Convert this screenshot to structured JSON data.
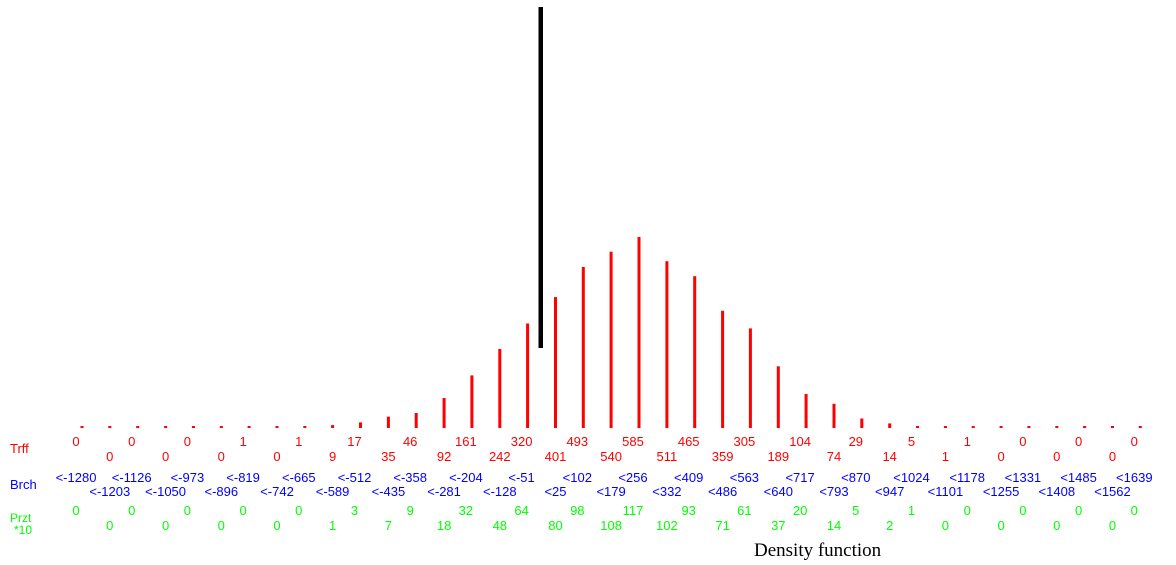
{
  "chart_data": {
    "type": "bar",
    "title": "Density function",
    "row_labels": {
      "traffic": "Trff",
      "bracket": "Brch",
      "percent_top": "Przt",
      "percent_bottom": "*10"
    },
    "colors": {
      "bars": "#ff0000",
      "traffic": "#ff0000",
      "bracket": "#0000ff",
      "percent": "#00ff00",
      "marker": "#000000"
    },
    "categories": [
      "<-1280",
      "<-1203",
      "<-1126",
      "<-1050",
      "<-973",
      "<-896",
      "<-819",
      "<-742",
      "<-665",
      "<-589",
      "<-512",
      "<-435",
      "<-358",
      "<-281",
      "<-204",
      "<-128",
      "<-51",
      "<25",
      "<102",
      "<179",
      "<256",
      "<332",
      "<409",
      "<486",
      "<563",
      "<640",
      "<717",
      "<793",
      "<870",
      "<947",
      "<1024",
      "<1101",
      "<1178",
      "<1255",
      "<1331",
      "<1408",
      "<1485",
      "<1562",
      "<1639"
    ],
    "values": [
      0,
      0,
      0,
      0,
      0,
      0,
      1,
      0,
      1,
      9,
      17,
      35,
      46,
      92,
      161,
      242,
      320,
      401,
      493,
      540,
      585,
      511,
      465,
      359,
      305,
      189,
      104,
      74,
      29,
      14,
      5,
      1,
      1,
      0,
      0,
      0,
      0,
      0,
      0
    ],
    "percent_x10": [
      0,
      0,
      0,
      0,
      0,
      0,
      0,
      0,
      0,
      1,
      3,
      7,
      9,
      18,
      32,
      48,
      64,
      80,
      98,
      108,
      117,
      102,
      93,
      71,
      61,
      37,
      20,
      14,
      5,
      2,
      1,
      0,
      0,
      0,
      0,
      0,
      0,
      0,
      0
    ],
    "marker_position": 16.5
  }
}
